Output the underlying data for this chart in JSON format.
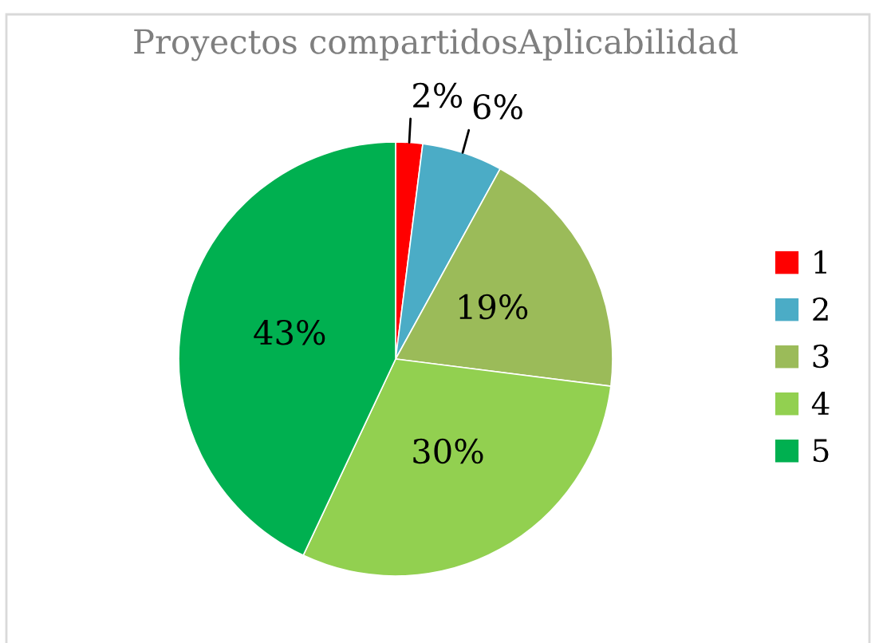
{
  "chart_data": {
    "type": "pie",
    "title": "Proyectos compartidosAplicabilidad",
    "categories": [
      "1",
      "2",
      "3",
      "4",
      "5"
    ],
    "values": [
      2,
      6,
      19,
      30,
      43
    ],
    "colors": [
      "#ff0000",
      "#4bacc6",
      "#9bbb59",
      "#92d050",
      "#00b050"
    ],
    "value_labels": [
      "2%",
      "6%",
      "19%",
      "30%",
      "43%"
    ],
    "legend": "right"
  }
}
